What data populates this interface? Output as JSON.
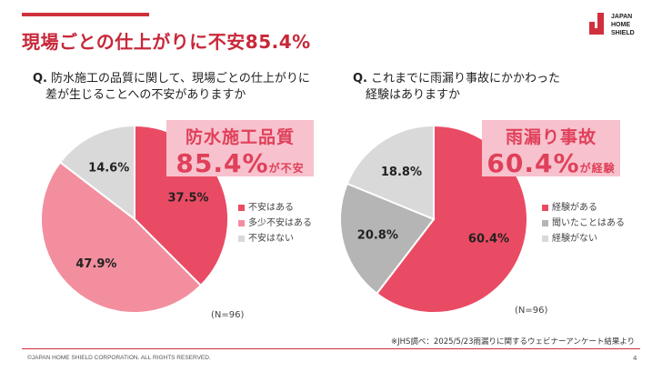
{
  "slide": {
    "title": "現場ごとの仕上がりに不安85.4%",
    "logo_text": [
      "JAPAN",
      "HOME",
      "SHIELD"
    ],
    "note": "※JHS調べ：2025/5/23雨漏りに関するウェビナーアンケート結果より",
    "copyright": "©JAPAN HOME SHIELD CORPORATION.  ALL RIGHTS RESERVED.",
    "page_number": "4"
  },
  "left": {
    "q_mark": "Q.",
    "question_line1": "防水施工の品質に関して、現場ごとの仕上がりに",
    "question_line2": "差が生じることへの不安がありますか",
    "highlight_title": "防水施工品質",
    "highlight_value": "85.4%",
    "highlight_suffix": "が不安",
    "n_label": "(N=96)"
  },
  "right": {
    "q_mark": "Q.",
    "question_line1": "これまでに雨漏り事故にかかわった",
    "question_line2": "経験はありますか",
    "highlight_title": "雨漏り事故",
    "highlight_value": "60.4%",
    "highlight_suffix": "が経験",
    "n_label": "(N=96)"
  },
  "chart_data": [
    {
      "type": "pie",
      "title": "",
      "legend_position": "right",
      "slices": [
        {
          "label": "不安はある",
          "value": 37.5,
          "display": "37.5%",
          "color": "#ea4b64",
          "text_color": "#222222"
        },
        {
          "label": "多少不安はある",
          "value": 47.9,
          "display": "47.9%",
          "color": "#f28e9e",
          "text_color": "#222222"
        },
        {
          "label": "不安はない",
          "value": 14.6,
          "display": "14.6%",
          "color": "#d9d9d9",
          "text_color": "#222222"
        }
      ]
    },
    {
      "type": "pie",
      "title": "",
      "legend_position": "right",
      "slices": [
        {
          "label": "経験がある",
          "value": 60.4,
          "display": "60.4%",
          "color": "#ea4b64",
          "text_color": "#222222"
        },
        {
          "label": "聞いたことはある",
          "value": 20.8,
          "display": "20.8%",
          "color": "#b5b5b5",
          "text_color": "#222222"
        },
        {
          "label": "経験がない",
          "value": 18.8,
          "display": "18.8%",
          "color": "#d9d9d9",
          "text_color": "#222222"
        }
      ]
    }
  ]
}
